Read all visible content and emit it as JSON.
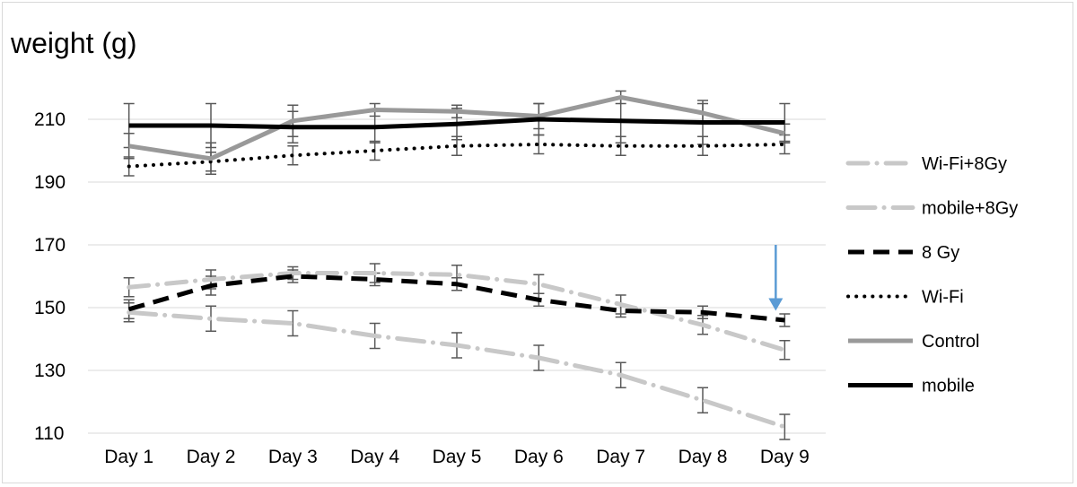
{
  "chart_data": {
    "type": "line",
    "title": "weight (g)",
    "xlabel": "",
    "ylabel": "",
    "categories": [
      "Day 1",
      "Day 2",
      "Day 3",
      "Day 4",
      "Day 5",
      "Day 6",
      "Day 7",
      "Day 8",
      "Day 9"
    ],
    "y_ticks": [
      110,
      130,
      150,
      170,
      190,
      210
    ],
    "ylim": [
      108,
      228
    ],
    "grid": "horizontal",
    "legend_position": "right",
    "arrow_annotation": {
      "category": "Day 9",
      "from_y": 170,
      "to_y": 149,
      "color": "#5b9bd5"
    },
    "series": [
      {
        "name": "Wi-Fi+8Gy",
        "style": "dash-dot",
        "color": "#c8c8c8",
        "values": [
          156.5,
          159,
          161,
          161,
          160.5,
          157.5,
          151,
          144.5,
          136.5
        ],
        "errors": [
          3,
          3,
          2,
          3,
          3,
          3,
          3,
          3,
          3
        ]
      },
      {
        "name": "mobile+8Gy",
        "style": "long-dash-dot",
        "color": "#c8c8c8",
        "values": [
          148.5,
          146.5,
          145,
          141,
          138,
          134,
          128.5,
          120.5,
          112
        ],
        "errors": [
          3,
          4,
          4,
          4,
          4,
          4,
          4,
          4,
          4
        ]
      },
      {
        "name": "8 Gy",
        "style": "dash",
        "color": "#000000",
        "values": [
          149.5,
          157,
          160,
          159,
          157.5,
          152.5,
          149,
          148.5,
          146
        ],
        "errors": [
          3,
          3,
          2,
          2,
          2,
          2,
          2,
          2,
          2
        ]
      },
      {
        "name": "Wi-Fi",
        "style": "dot",
        "color": "#000000",
        "values": [
          195,
          196.5,
          198.5,
          200,
          201.5,
          202,
          201.5,
          201.5,
          202
        ],
        "errors": [
          3,
          3,
          3,
          3,
          3,
          3,
          3,
          3,
          3
        ]
      },
      {
        "name": "Control",
        "style": "solid",
        "color": "#999999",
        "values": [
          201.5,
          197.5,
          209.5,
          213,
          212.5,
          211,
          217,
          212,
          205.5
        ],
        "errors": [
          4,
          5,
          5,
          2,
          2,
          4,
          2,
          3,
          3
        ]
      },
      {
        "name": "mobile",
        "style": "solid",
        "color": "#000000",
        "values": [
          208,
          208,
          207.5,
          207.5,
          208.5,
          210,
          209.5,
          209,
          209
        ],
        "errors": [
          7,
          7,
          5,
          5,
          5,
          5,
          7,
          7,
          6
        ]
      }
    ]
  }
}
